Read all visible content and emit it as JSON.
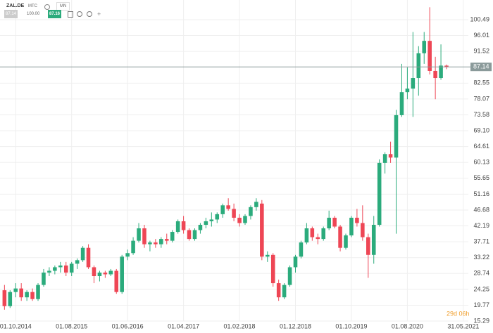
{
  "toolbar": {
    "symbol": "ZAL.DE",
    "exchange": "MTC",
    "interval": "MN",
    "bid": "87.14",
    "amount": "100.00",
    "ask": "87.16"
  },
  "chart_data": {
    "type": "candlestick",
    "up_color": "#2bab7c",
    "down_color": "#ee4655",
    "grid": true,
    "last": 87.14,
    "countdown": "29d 06h",
    "open": [
      24,
      19.5,
      23.5,
      24.5,
      22,
      23.5,
      21.5,
      25.5,
      29,
      29.5,
      30.5,
      31,
      29,
      31.5,
      32.5,
      36,
      30.5,
      28,
      29,
      28.5,
      29.5,
      23.5,
      33.5,
      34.5,
      38,
      41.5,
      37,
      37.5,
      37,
      38.5,
      38,
      40.5,
      43.5,
      41,
      38.5,
      41,
      42.5,
      43.5,
      44,
      45.5,
      48,
      47,
      44.5,
      43,
      45,
      47.5,
      48.5,
      33.5,
      34,
      26,
      22,
      25.5,
      30.5,
      33.5,
      37.5,
      41.5,
      39,
      38.5,
      41.5,
      44.5,
      42,
      36,
      39.5,
      44.5,
      43,
      39,
      34,
      42.5,
      60,
      62.5,
      61.5,
      73.5,
      80,
      81,
      84,
      91,
      94.5,
      86,
      84,
      87.5
    ],
    "high": [
      25.5,
      24,
      26,
      26,
      24,
      24.5,
      26,
      30,
      30.5,
      31,
      32,
      32,
      32,
      33,
      36.5,
      37,
      31,
      29.5,
      29.5,
      30,
      30,
      34,
      35.5,
      39,
      43,
      42.5,
      38,
      38.5,
      39,
      40,
      41,
      44,
      45,
      41.5,
      41.5,
      43,
      44.5,
      46,
      46,
      48.5,
      50,
      48.5,
      45.5,
      45.5,
      48,
      50,
      49.5,
      35,
      34.5,
      27,
      26,
      31,
      34,
      38,
      43,
      42,
      40,
      42,
      46.5,
      45,
      42.5,
      40,
      45,
      47,
      48,
      40,
      45,
      61,
      63,
      66,
      75,
      88,
      87,
      97,
      93,
      97,
      104,
      90,
      93.5,
      87.8
    ],
    "low": [
      18.5,
      19,
      22,
      21,
      21,
      21,
      21,
      25,
      28,
      28.5,
      29,
      28,
      28,
      30,
      32,
      30,
      26,
      26.5,
      27.5,
      28,
      23,
      23,
      32.5,
      34,
      37.5,
      36,
      35,
      36,
      36,
      37,
      37.5,
      40,
      40,
      38,
      38,
      40,
      41.5,
      42,
      43,
      44.5,
      46.5,
      43.5,
      42,
      42.5,
      44,
      46.5,
      32.5,
      32,
      25,
      21,
      21.5,
      25,
      29,
      33,
      37,
      38,
      37,
      38,
      41,
      41.5,
      35,
      35.5,
      39,
      42,
      38,
      27.5,
      31.5,
      42,
      57,
      60,
      40,
      73,
      78,
      73,
      79,
      88,
      85,
      78,
      83.5,
      86.5
    ],
    "close": [
      19.5,
      23.5,
      24.5,
      22,
      23.5,
      21.5,
      25.5,
      29,
      29.5,
      30.5,
      31,
      29,
      31.5,
      32.5,
      36,
      30.5,
      28,
      29,
      28.5,
      29.5,
      23.5,
      33.5,
      34.5,
      38,
      41.5,
      37,
      37.5,
      37,
      38.5,
      38,
      40.5,
      43.5,
      41,
      38.5,
      41,
      42.5,
      43.5,
      44,
      45.5,
      48,
      47,
      44.5,
      43,
      45,
      47.5,
      49,
      33.5,
      34,
      26,
      22,
      25.5,
      30.5,
      33.5,
      37.5,
      41.5,
      39,
      38.5,
      41.5,
      44.5,
      42,
      36,
      39.5,
      44.5,
      43,
      39,
      34,
      42.5,
      60,
      62.5,
      61.5,
      73.5,
      80,
      81,
      84,
      91,
      94.5,
      86,
      84,
      87.5,
      87.14
    ],
    "xlim": [
      -0.8,
      82.9
    ],
    "xticks": [
      {
        "value": 2,
        "label": "01.10.2014"
      },
      {
        "value": 12,
        "label": "01.08.2015"
      },
      {
        "value": 22,
        "label": "01.06.2016"
      },
      {
        "value": 32,
        "label": "01.04.2017"
      },
      {
        "value": 42,
        "label": "01.02.2018"
      },
      {
        "value": 52,
        "label": "01.12.2018"
      },
      {
        "value": 62,
        "label": "01.10.2019"
      },
      {
        "value": 72,
        "label": "01.08.2020"
      },
      {
        "value": 82,
        "label": "31.05.2021"
      }
    ],
    "ylim": [
      15.29,
      106.05
    ],
    "yticks": [
      15.29,
      19.77,
      24.25,
      28.74,
      33.22,
      37.71,
      42.19,
      46.68,
      51.16,
      55.65,
      60.13,
      64.61,
      {
        "value": 69.1,
        "label": "69.10"
      },
      73.58,
      78.07,
      82.55,
      91.52,
      96.01,
      100.49
    ]
  }
}
